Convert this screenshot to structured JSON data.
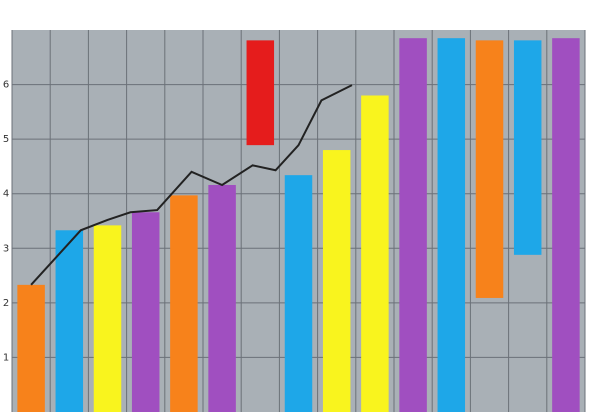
{
  "chart_data": {
    "type": "bar",
    "categories": [
      null,
      null,
      null,
      null,
      null,
      null,
      null,
      null,
      null,
      null,
      null,
      null,
      null,
      null,
      null
    ],
    "values": [
      2.33,
      3.33,
      3.42,
      3.66,
      3.97,
      4.16,
      6.81,
      4.34,
      4.8,
      5.8,
      6.85,
      6.85,
      6.81,
      6.81,
      6.85
    ],
    "bases": [
      null,
      null,
      null,
      null,
      null,
      null,
      4.89,
      null,
      null,
      null,
      null,
      null,
      2.09,
      2.88,
      null
    ],
    "colors": [
      "#f7821b",
      "#1ea7e8",
      "#f9f41e",
      "#a04fc0",
      "#f7821b",
      "#a04fc0",
      "#e51c1c",
      "#1ea7e8",
      "#f9f41e",
      "#f9f41e",
      "#a04fc0",
      "#1ea7e8",
      "#f7821b",
      "#1ea7e8",
      "#a04fc0"
    ],
    "line": {
      "color": "#222222",
      "x": [
        0,
        1.3,
        2,
        2.6,
        3.3,
        4.2,
        5,
        5.8,
        6.4,
        7,
        7.6,
        8.4
      ],
      "values": [
        2.33,
        3.33,
        3.52,
        3.66,
        3.7,
        4.4,
        4.16,
        4.52,
        4.43,
        4.89,
        5.71,
        5.99
      ]
    },
    "ylim": [
      0,
      7
    ],
    "yticks": [
      1,
      2,
      3,
      4,
      5,
      6
    ],
    "grid": true
  }
}
